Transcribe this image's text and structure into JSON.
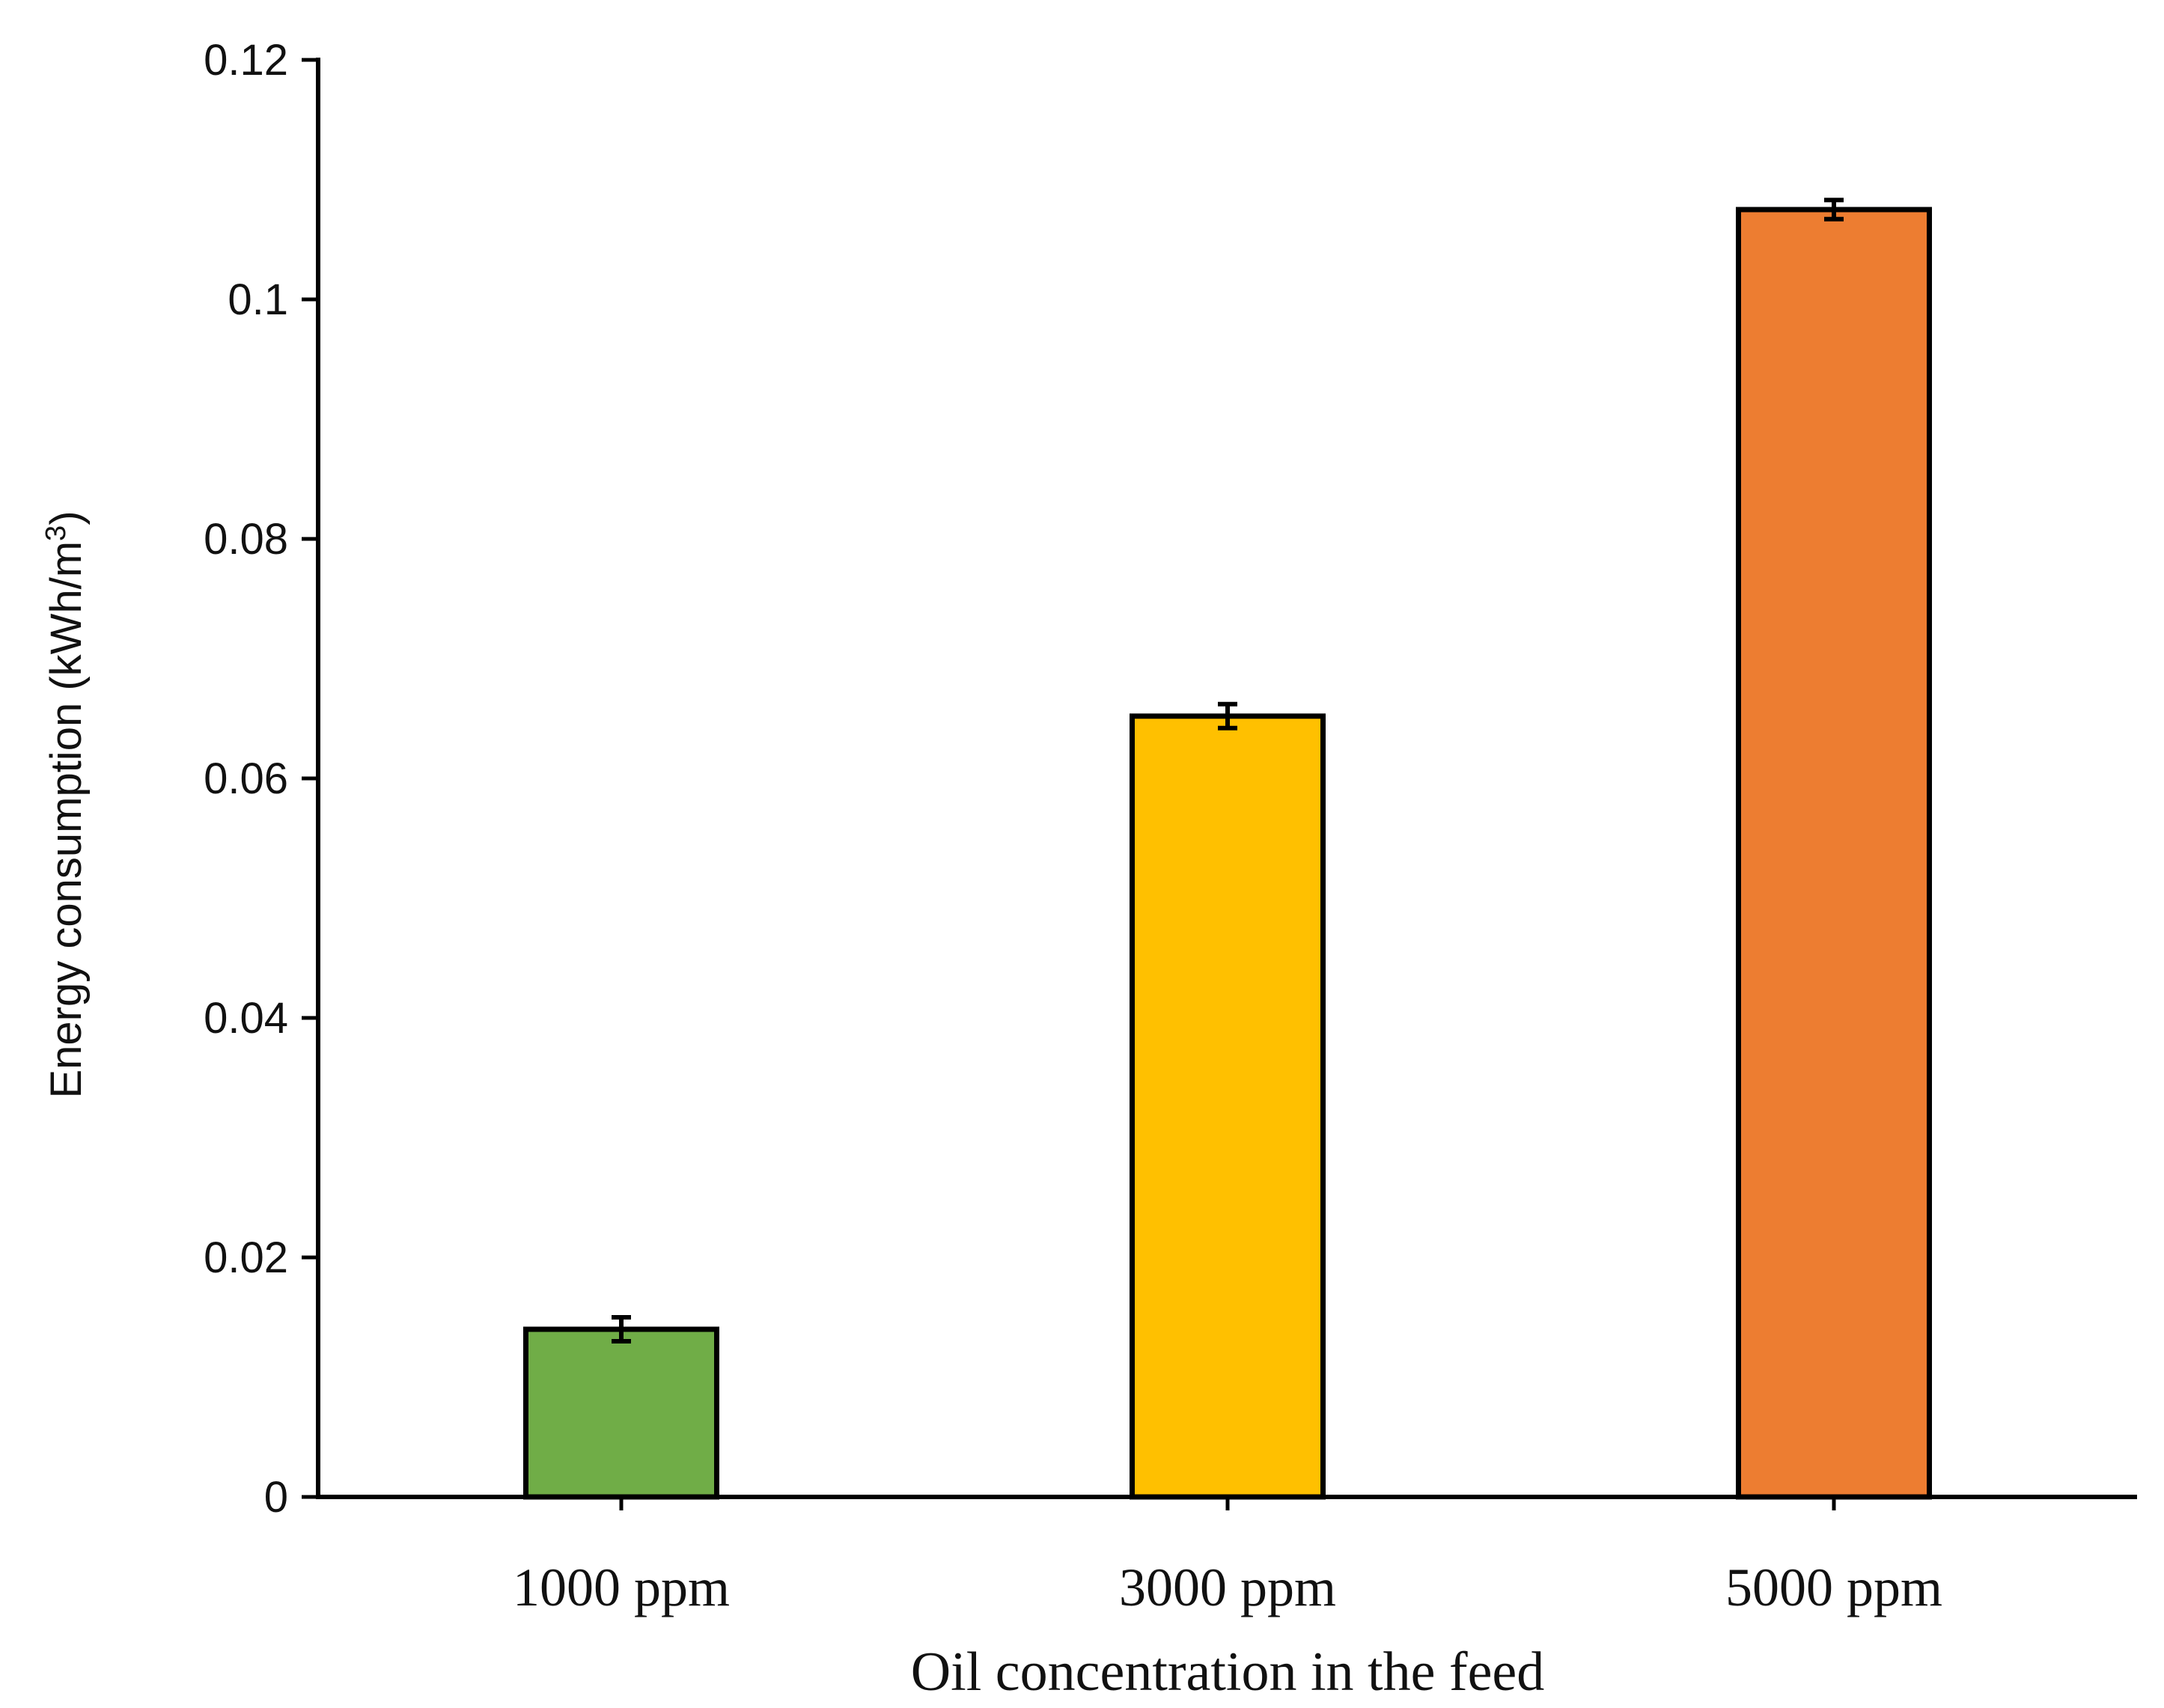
{
  "chart_data": {
    "type": "bar",
    "title": "",
    "xlabel": "Oil concentration in the feed",
    "ylabel": "Energy consumption (kWh/m",
    "ylabel_superscript": "3",
    "ylabel_suffix": ")",
    "categories": [
      "1000 ppm",
      "3000 ppm",
      "5000 ppm"
    ],
    "values": [
      0.014,
      0.0652,
      0.1075
    ],
    "errors": [
      0.001,
      0.001,
      0.0008
    ],
    "colors": [
      "#70AD47",
      "#FFC000",
      "#ED7D31"
    ],
    "ylim": [
      0,
      0.12
    ],
    "yticks": [
      0,
      0.02,
      0.04,
      0.06,
      0.08,
      0.1,
      0.12
    ],
    "ytick_labels": [
      "0",
      "0.02",
      "0.04",
      "0.06",
      "0.08",
      "0.1",
      "0.12"
    ],
    "grid": false,
    "legend": "none"
  }
}
